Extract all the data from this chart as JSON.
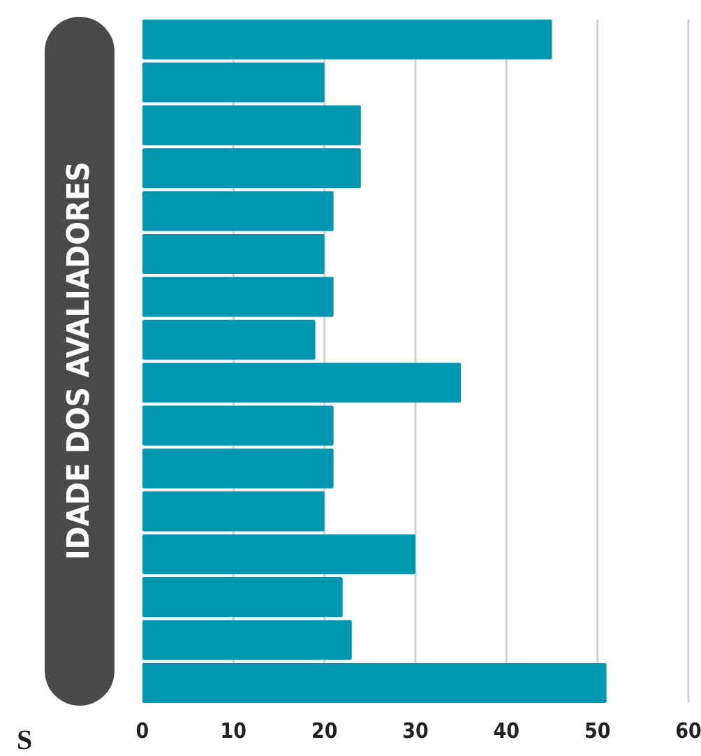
{
  "chart_data": {
    "type": "bar",
    "orientation": "horizontal",
    "ylabel": "IDADE DOS AVALIADORES",
    "categories": [
      null,
      null,
      null,
      null,
      null,
      null,
      null,
      null,
      null,
      null,
      null,
      null,
      null,
      null,
      null,
      null
    ],
    "values": [
      45,
      20,
      24,
      24,
      21,
      20,
      21,
      19,
      35,
      21,
      21,
      20,
      30,
      22,
      23,
      51
    ],
    "color": "#0097b2",
    "xlim": [
      0,
      60
    ],
    "xticks": [
      0,
      10,
      20,
      30,
      40,
      50,
      60
    ],
    "grid": "x",
    "tick_labels": "x",
    "annotations": [
      "S"
    ]
  }
}
